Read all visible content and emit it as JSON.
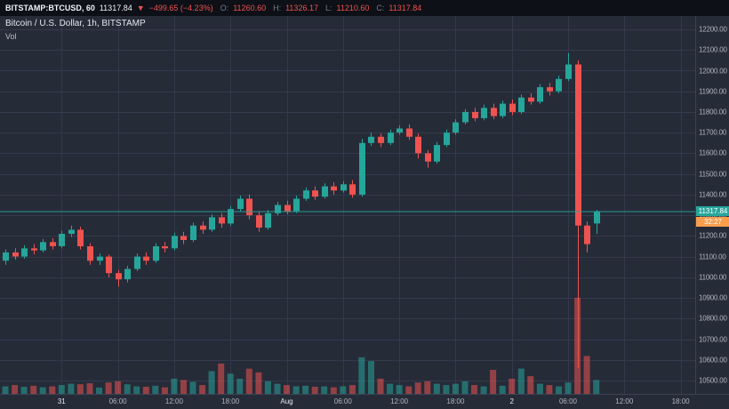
{
  "topbar": {
    "symbol": "BITSTAMP:BTCUSD, 60",
    "last_price": "11317.84",
    "change_arrow": "▼",
    "change": "−499.65 (−4.23%)",
    "o_label": "O:",
    "o_value": "11260.60",
    "h_label": "H:",
    "h_value": "11326.17",
    "l_label": "L:",
    "l_value": "11210.60",
    "c_label": "C:",
    "c_value": "11317.84"
  },
  "legend": {
    "title": "Bitcoin / U.S. Dollar, 1h, BITSTAMP",
    "vol_label": "Vol"
  },
  "axis": {
    "price_label": "11317.84",
    "countdown": "32:27"
  },
  "colors": {
    "up": "#26a69a",
    "down": "#ef5350",
    "grid": "#343a4c",
    "price_line": "#26a69a",
    "countdown_bg": "#f89e4d"
  },
  "chart_data": {
    "type": "candlestick",
    "title": "Bitcoin / U.S. Dollar, 1h, BITSTAMP",
    "exchange": "BITSTAMP",
    "interval": "1h",
    "price_axis": {
      "min": 10500,
      "max": 12200,
      "step": 100
    },
    "x_ticks": [
      {
        "label": "31",
        "index": 6,
        "major": true
      },
      {
        "label": "06:00",
        "index": 12,
        "major": false
      },
      {
        "label": "12:00",
        "index": 18,
        "major": false
      },
      {
        "label": "18:00",
        "index": 24,
        "major": false
      },
      {
        "label": "Aug",
        "index": 30,
        "major": true
      },
      {
        "label": "06:00",
        "index": 36,
        "major": false
      },
      {
        "label": "12:00",
        "index": 42,
        "major": false
      },
      {
        "label": "18:00",
        "index": 48,
        "major": false
      },
      {
        "label": "2",
        "index": 54,
        "major": true
      },
      {
        "label": "06:00",
        "index": 60,
        "major": false
      },
      {
        "label": "12:00",
        "index": 66,
        "major": false
      },
      {
        "label": "18:00",
        "index": 72,
        "major": false
      }
    ],
    "ohlc_order": [
      "open",
      "high",
      "low",
      "close"
    ],
    "candles_ohlc": [
      [
        11080,
        11135,
        11060,
        11120
      ],
      [
        11120,
        11140,
        11085,
        11100
      ],
      [
        11100,
        11155,
        11090,
        11140
      ],
      [
        11140,
        11160,
        11110,
        11130
      ],
      [
        11130,
        11185,
        11120,
        11170
      ],
      [
        11170,
        11190,
        11135,
        11150
      ],
      [
        11150,
        11225,
        11140,
        11210
      ],
      [
        11210,
        11250,
        11195,
        11230
      ],
      [
        11230,
        11245,
        11135,
        11150
      ],
      [
        11150,
        11165,
        11060,
        11080
      ],
      [
        11080,
        11115,
        11060,
        11100
      ],
      [
        11100,
        11110,
        11000,
        11020
      ],
      [
        11020,
        11035,
        10955,
        10990
      ],
      [
        10990,
        11055,
        10975,
        11040
      ],
      [
        11040,
        11115,
        11030,
        11100
      ],
      [
        11100,
        11120,
        11060,
        11080
      ],
      [
        11080,
        11165,
        11070,
        11150
      ],
      [
        11150,
        11170,
        11120,
        11140
      ],
      [
        11140,
        11215,
        11130,
        11200
      ],
      [
        11200,
        11220,
        11160,
        11180
      ],
      [
        11180,
        11265,
        11170,
        11250
      ],
      [
        11250,
        11270,
        11210,
        11230
      ],
      [
        11230,
        11305,
        11220,
        11290
      ],
      [
        11290,
        11310,
        11240,
        11260
      ],
      [
        11260,
        11345,
        11250,
        11330
      ],
      [
        11330,
        11395,
        11320,
        11380
      ],
      [
        11380,
        11400,
        11280,
        11300
      ],
      [
        11300,
        11320,
        11220,
        11240
      ],
      [
        11240,
        11325,
        11230,
        11310
      ],
      [
        11310,
        11365,
        11300,
        11350
      ],
      [
        11350,
        11370,
        11305,
        11320
      ],
      [
        11320,
        11395,
        11310,
        11380
      ],
      [
        11380,
        11435,
        11370,
        11420
      ],
      [
        11420,
        11440,
        11375,
        11390
      ],
      [
        11390,
        11455,
        11380,
        11440
      ],
      [
        11440,
        11460,
        11400,
        11420
      ],
      [
        11420,
        11465,
        11410,
        11450
      ],
      [
        11450,
        11470,
        11385,
        11400
      ],
      [
        11400,
        11670,
        11390,
        11650
      ],
      [
        11650,
        11700,
        11635,
        11680
      ],
      [
        11680,
        11695,
        11630,
        11650
      ],
      [
        11650,
        11715,
        11640,
        11700
      ],
      [
        11700,
        11735,
        11690,
        11720
      ],
      [
        11720,
        11740,
        11665,
        11680
      ],
      [
        11680,
        11695,
        11575,
        11600
      ],
      [
        11600,
        11615,
        11530,
        11560
      ],
      [
        11560,
        11655,
        11550,
        11640
      ],
      [
        11640,
        11715,
        11630,
        11700
      ],
      [
        11700,
        11765,
        11690,
        11750
      ],
      [
        11750,
        11815,
        11740,
        11800
      ],
      [
        11800,
        11820,
        11755,
        11770
      ],
      [
        11770,
        11835,
        11760,
        11820
      ],
      [
        11820,
        11840,
        11765,
        11780
      ],
      [
        11780,
        11855,
        11770,
        11840
      ],
      [
        11840,
        11860,
        11785,
        11800
      ],
      [
        11800,
        11885,
        11790,
        11870
      ],
      [
        11870,
        11890,
        11835,
        11850
      ],
      [
        11850,
        11935,
        11840,
        11920
      ],
      [
        11920,
        11940,
        11880,
        11900
      ],
      [
        11900,
        11975,
        11890,
        11960
      ],
      [
        11960,
        12085,
        11950,
        12030
      ],
      [
        12030,
        12050,
        10560,
        11250
      ],
      [
        11250,
        11270,
        11120,
        11160
      ],
      [
        11260.6,
        11326.17,
        11210.6,
        11317.84
      ]
    ],
    "volumes": [
      300,
      350,
      280,
      320,
      260,
      300,
      350,
      400,
      380,
      420,
      250,
      450,
      500,
      380,
      300,
      280,
      320,
      260,
      600,
      550,
      480,
      350,
      900,
      1200,
      800,
      600,
      1000,
      850,
      500,
      400,
      350,
      300,
      320,
      280,
      300,
      260,
      300,
      350,
      1450,
      1300,
      600,
      400,
      350,
      300,
      450,
      500,
      400,
      350,
      400,
      500,
      350,
      300,
      950,
      320,
      600,
      1000,
      700,
      400,
      350,
      300,
      450,
      3800,
      1500,
      550
    ],
    "last_price": 11317.84,
    "countdown": "32:27",
    "grid": true,
    "legend_position": "top-left"
  }
}
